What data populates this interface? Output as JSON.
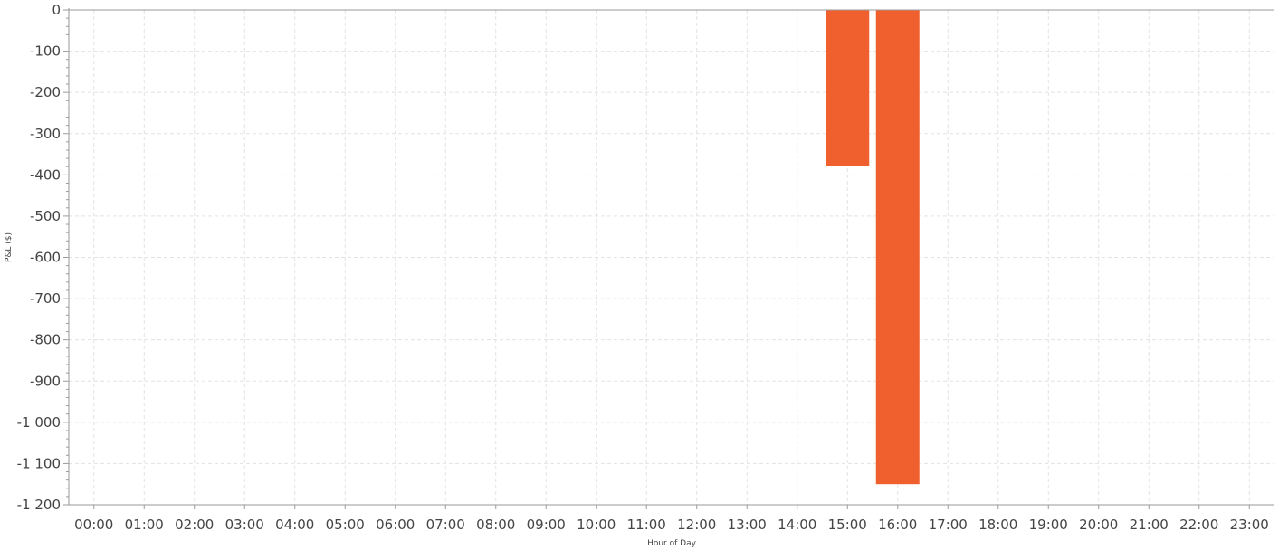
{
  "chart_data": {
    "type": "bar",
    "title": "",
    "xlabel": "Hour of Day",
    "ylabel": "P&L ($)",
    "categories": [
      "00:00",
      "01:00",
      "02:00",
      "03:00",
      "04:00",
      "05:00",
      "06:00",
      "07:00",
      "08:00",
      "09:00",
      "10:00",
      "11:00",
      "12:00",
      "13:00",
      "14:00",
      "15:00",
      "16:00",
      "17:00",
      "18:00",
      "19:00",
      "20:00",
      "21:00",
      "22:00",
      "23:00"
    ],
    "values": [
      0,
      0,
      0,
      0,
      0,
      0,
      0,
      0,
      0,
      0,
      0,
      0,
      0,
      0,
      0,
      -378,
      -1150,
      0,
      0,
      0,
      0,
      0,
      0,
      0
    ],
    "ylim": [
      -1200,
      0
    ],
    "yticks": [
      0,
      -100,
      -200,
      -300,
      -400,
      -500,
      -600,
      -700,
      -800,
      -900,
      -1000,
      -1100,
      -1200
    ],
    "ytick_labels": [
      "0",
      "-100",
      "-200",
      "-300",
      "-400",
      "-500",
      "-600",
      "-700",
      "-800",
      "-900",
      "-1 000",
      "-1 100",
      "-1 200"
    ],
    "grid": true,
    "legend": "none",
    "bar_color": "#f0602e",
    "grid_color": "#e2e2e2",
    "axis_color": "#9a9a9a"
  }
}
